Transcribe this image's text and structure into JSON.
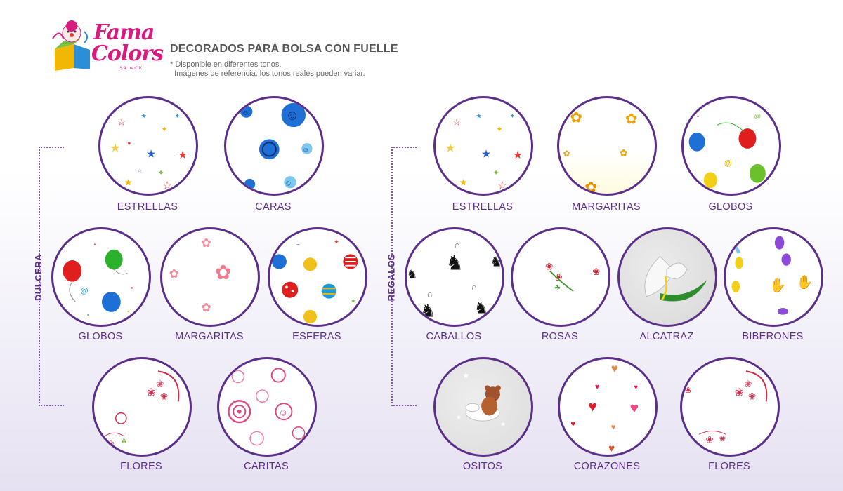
{
  "brand": {
    "line1": "Fama",
    "line2": "Colors",
    "suffix": "S.A. de C.V."
  },
  "header": {
    "title": "DECORADOS PARA BOLSA CON FUELLE",
    "note": "* Disponible en diferentes tonos.\n  Imágenes de referencia, los tonos reales pueden variar."
  },
  "sections": {
    "dulcera": {
      "label": "DULCERA",
      "items": [
        "ESTRELLAS",
        "CARAS",
        "GLOBOS",
        "MARGARITAS",
        "ESFERAS",
        "FLORES",
        "CARITAS"
      ]
    },
    "regalos": {
      "label": "REGALOS",
      "items": [
        "ESTRELLAS",
        "MARGARITAS",
        "GLOBOS",
        "CABALLOS",
        "ROSAS",
        "ALCATRAZ",
        "BIBERONES",
        "OSITOS",
        "CORAZONES",
        "FLORES"
      ]
    }
  },
  "colors": {
    "accent": "#5b2e8a",
    "brand": "#d61c7e"
  }
}
